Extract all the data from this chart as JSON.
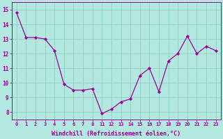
{
  "x_indices": [
    0,
    1,
    2,
    3,
    4,
    5,
    6,
    7,
    8,
    9,
    10,
    11,
    12,
    13,
    14,
    15,
    16,
    17,
    18,
    19,
    20,
    21
  ],
  "y_actual": [
    14.8,
    13.1,
    13.1,
    13.0,
    12.2,
    9.9,
    9.5,
    9.5,
    9.6,
    7.9,
    8.2,
    8.7,
    8.9,
    10.5,
    11.0,
    9.4,
    11.5,
    12.0,
    13.2,
    12.0,
    12.5,
    12.2
  ],
  "xtick_labels": [
    "0",
    "1",
    "2",
    "3",
    "4",
    "5",
    "6",
    "7",
    "8",
    "11",
    "12",
    "13",
    "14",
    "15",
    "16",
    "17",
    "18",
    "19",
    "20",
    "21",
    "22",
    "23"
  ],
  "yticks": [
    8,
    9,
    10,
    11,
    12,
    13,
    14,
    15
  ],
  "ylim": [
    7.5,
    15.5
  ],
  "xlim": [
    -0.5,
    21.5
  ],
  "line_color": "#990099",
  "bg_color": "#b3e8e0",
  "grid_color": "#8ecfc4",
  "xlabel": "Windchill (Refroidissement éolien,°C)"
}
